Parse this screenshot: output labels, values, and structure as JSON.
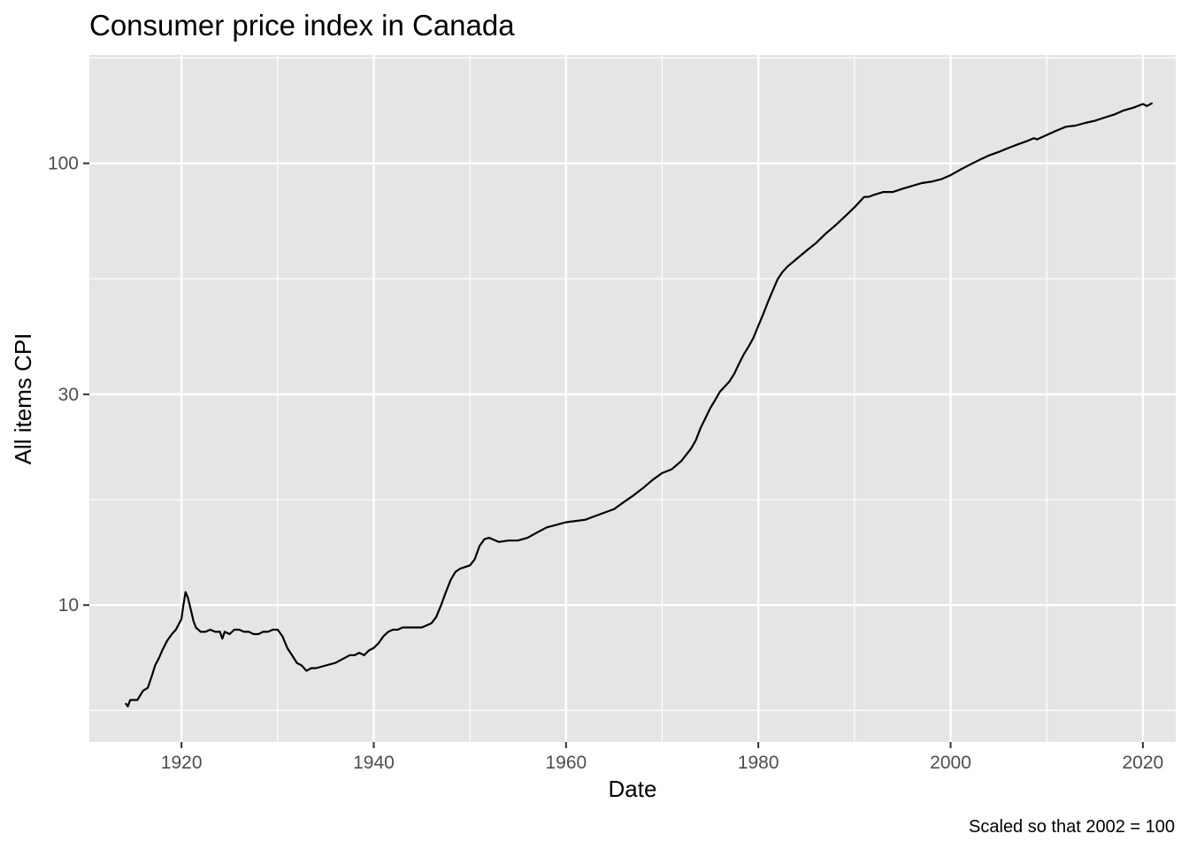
{
  "chart_data": {
    "type": "line",
    "title": "Consumer price index in Canada",
    "xlabel": "Date",
    "ylabel": "All items CPI",
    "caption": "Scaled so that 2002 = 100",
    "x_scale": "date",
    "y_scale": "log10",
    "xlim": [
      "1910-06",
      "2023-06"
    ],
    "ylim": [
      4.9,
      176
    ],
    "x_ticks": [
      1920,
      1940,
      1960,
      1980,
      2000,
      2020
    ],
    "x_tick_labels": [
      "1920",
      "1940",
      "1960",
      "1980",
      "2000",
      "2020"
    ],
    "y_ticks": [
      10,
      30,
      100
    ],
    "y_tick_labels": [
      "10",
      "30",
      "100"
    ],
    "grid": true,
    "background": "#e5e5e5",
    "grid_color": "#ffffff",
    "line_color": "#000000",
    "series": [
      {
        "x": [
          "1914-03",
          "1914-06",
          "1914-09",
          "1915-06",
          "1916-01",
          "1916-07",
          "1917-01",
          "1917-04",
          "1917-09",
          "1918-01",
          "1918-07",
          "1919-01",
          "1919-06",
          "1920-01",
          "1920-03",
          "1920-06",
          "1920-09",
          "1921-01",
          "1921-04",
          "1921-07",
          "1922-01",
          "1922-07",
          "1923-01",
          "1923-07",
          "1924-01",
          "1924-04",
          "1924-07",
          "1925-01",
          "1925-07",
          "1926-01",
          "1926-07",
          "1927-01",
          "1927-07",
          "1928-01",
          "1928-07",
          "1929-01",
          "1929-07",
          "1930-01",
          "1930-07",
          "1931-01",
          "1931-07",
          "1932-01",
          "1932-07",
          "1933-01",
          "1933-07",
          "1934-01",
          "1935-01",
          "1936-01",
          "1937-01",
          "1937-07",
          "1938-01",
          "1938-07",
          "1939-01",
          "1939-07",
          "1940-01",
          "1940-07",
          "1941-01",
          "1941-07",
          "1942-01",
          "1942-07",
          "1943-01",
          "1944-01",
          "1945-01",
          "1946-01",
          "1946-07",
          "1947-01",
          "1947-07",
          "1948-01",
          "1948-07",
          "1949-01",
          "1950-01",
          "1950-07",
          "1951-01",
          "1951-07",
          "1952-01",
          "1953-01",
          "1954-01",
          "1955-01",
          "1956-01",
          "1956-07",
          "1957-01",
          "1958-01",
          "1959-01",
          "1960-01",
          "1961-01",
          "1962-01",
          "1963-01",
          "1964-01",
          "1965-01",
          "1966-01",
          "1967-01",
          "1968-01",
          "1969-01",
          "1970-01",
          "1971-01",
          "1972-01",
          "1973-01",
          "1973-07",
          "1974-01",
          "1974-07",
          "1975-01",
          "1975-07",
          "1976-01",
          "1977-01",
          "1977-07",
          "1978-01",
          "1978-07",
          "1979-01",
          "1979-07",
          "1980-01",
          "1980-07",
          "1981-01",
          "1981-07",
          "1982-01",
          "1982-07",
          "1983-01",
          "1984-01",
          "1985-01",
          "1986-01",
          "1987-01",
          "1988-01",
          "1989-01",
          "1990-01",
          "1991-01",
          "1991-07",
          "1992-01",
          "1993-01",
          "1994-01",
          "1995-01",
          "1996-01",
          "1997-01",
          "1998-01",
          "1999-01",
          "2000-01",
          "2001-01",
          "2002-01",
          "2003-01",
          "2004-01",
          "2005-01",
          "2006-01",
          "2007-01",
          "2008-01",
          "2008-09",
          "2009-01",
          "2010-01",
          "2011-01",
          "2012-01",
          "2013-01",
          "2014-01",
          "2015-01",
          "2016-01",
          "2017-01",
          "2018-01",
          "2019-01",
          "2020-01",
          "2020-06",
          "2021-01"
        ],
        "y": [
          6.0,
          5.9,
          6.1,
          6.1,
          6.4,
          6.5,
          7.0,
          7.3,
          7.6,
          7.9,
          8.3,
          8.6,
          8.8,
          9.3,
          9.9,
          10.7,
          10.4,
          9.7,
          9.2,
          8.9,
          8.7,
          8.7,
          8.8,
          8.7,
          8.7,
          8.4,
          8.7,
          8.6,
          8.8,
          8.8,
          8.7,
          8.7,
          8.6,
          8.6,
          8.7,
          8.7,
          8.8,
          8.8,
          8.5,
          8.0,
          7.7,
          7.4,
          7.3,
          7.1,
          7.2,
          7.2,
          7.3,
          7.4,
          7.6,
          7.7,
          7.7,
          7.8,
          7.7,
          7.9,
          8.0,
          8.2,
          8.5,
          8.7,
          8.8,
          8.8,
          8.9,
          8.9,
          8.9,
          9.1,
          9.4,
          10.0,
          10.7,
          11.4,
          11.9,
          12.1,
          12.3,
          12.7,
          13.6,
          14.1,
          14.2,
          13.9,
          14.0,
          14.0,
          14.2,
          14.4,
          14.6,
          15.0,
          15.2,
          15.4,
          15.5,
          15.6,
          15.9,
          16.2,
          16.5,
          17.1,
          17.7,
          18.4,
          19.2,
          19.9,
          20.3,
          21.2,
          22.6,
          23.6,
          25.2,
          26.5,
          27.9,
          29.1,
          30.4,
          32.1,
          33.4,
          35.2,
          37.0,
          38.5,
          40.3,
          42.9,
          45.5,
          48.5,
          51.5,
          54.6,
          56.7,
          58.3,
          60.8,
          63.4,
          66.0,
          69.3,
          72.3,
          75.8,
          79.5,
          83.9,
          84.0,
          84.8,
          86.1,
          86.1,
          87.6,
          88.9,
          90.2,
          90.9,
          92.0,
          94.0,
          96.7,
          99.3,
          101.8,
          104.2,
          106.1,
          108.3,
          110.4,
          112.4,
          114.0,
          113.3,
          115.9,
          118.5,
          121.0,
          121.7,
          123.4,
          124.8,
          126.9,
          128.9,
          131.7,
          133.6,
          136.2,
          134.8,
          137.0
        ]
      }
    ]
  }
}
